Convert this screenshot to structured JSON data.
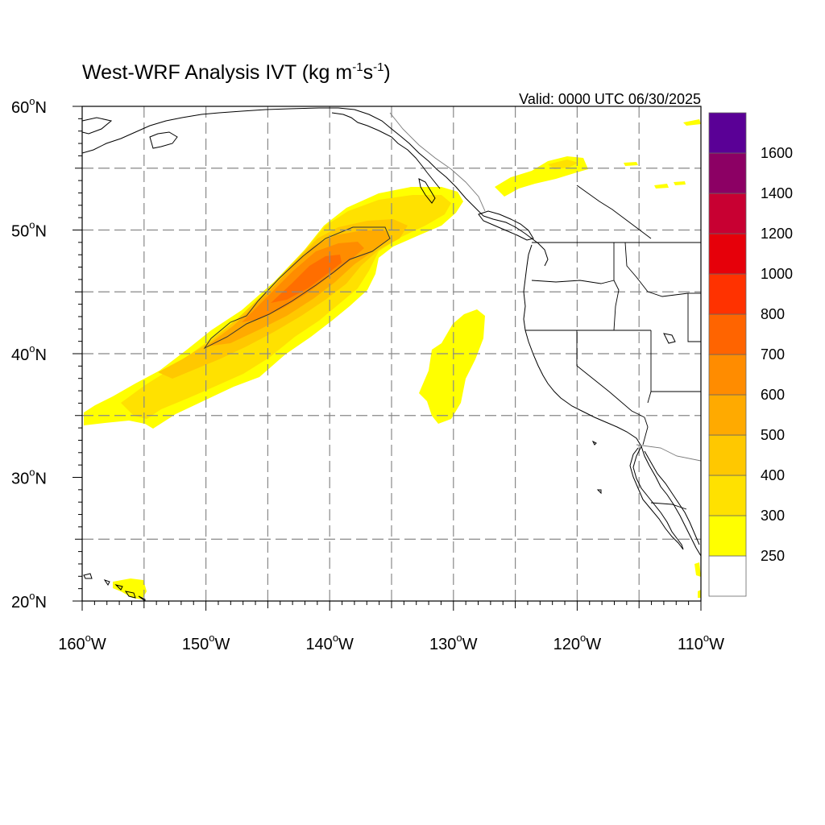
{
  "title": {
    "main": "West-WRF Analysis IVT (kg m",
    "sup1": "-1",
    "mid": "s",
    "sup2": "-1",
    "end": ")"
  },
  "valid": "Valid: 0000 UTC 06/30/2025",
  "lat_labels": [
    {
      "deg": "60",
      "hemi": "N",
      "value": 60
    },
    {
      "deg": "50",
      "hemi": "N",
      "value": 50
    },
    {
      "deg": "40",
      "hemi": "N",
      "value": 40
    },
    {
      "deg": "30",
      "hemi": "N",
      "value": 30
    },
    {
      "deg": "20",
      "hemi": "N",
      "value": 20
    }
  ],
  "lon_labels": [
    {
      "deg": "160",
      "hemi": "W",
      "value": -160
    },
    {
      "deg": "150",
      "hemi": "W",
      "value": -150
    },
    {
      "deg": "140",
      "hemi": "W",
      "value": -140
    },
    {
      "deg": "130",
      "hemi": "W",
      "value": -130
    },
    {
      "deg": "120",
      "hemi": "W",
      "value": -120
    },
    {
      "deg": "110",
      "hemi": "W",
      "value": -110
    }
  ],
  "colorbar": {
    "levels": [
      "250",
      "300",
      "400",
      "500",
      "600",
      "700",
      "800",
      "1000",
      "1200",
      "1400",
      "1600"
    ],
    "colors": [
      "#ffffff",
      "#ffff00",
      "#ffe100",
      "#ffc800",
      "#ffaa00",
      "#ff8c00",
      "#ff6400",
      "#ff3200",
      "#e6000a",
      "#c80032",
      "#8c0064",
      "#5a0096"
    ]
  },
  "map": {
    "lon_range": [
      -160,
      -110
    ],
    "lat_range": [
      20,
      60
    ],
    "grid_lon": [
      -155,
      -150,
      -145,
      -140,
      -135,
      -130,
      -125,
      -120,
      -115
    ],
    "grid_lat": [
      25,
      35,
      40,
      45,
      50,
      55
    ]
  }
}
